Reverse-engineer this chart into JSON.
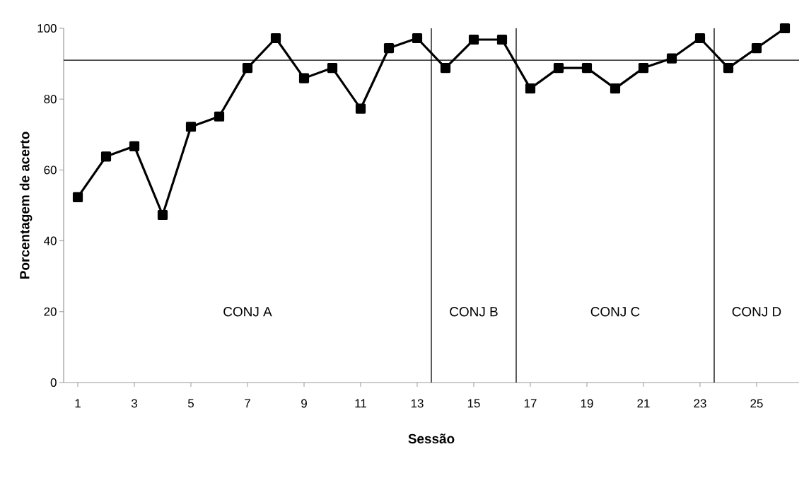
{
  "chart_data": {
    "type": "line",
    "xlabel": "Sessão",
    "ylabel": "Porcentagem de acerto",
    "x": [
      1,
      2,
      3,
      4,
      5,
      6,
      7,
      8,
      9,
      10,
      11,
      12,
      13,
      14,
      15,
      16,
      17,
      18,
      19,
      20,
      21,
      22,
      23,
      24,
      25,
      26
    ],
    "series": [
      {
        "color": "#000000",
        "values": [
          52.3,
          63.8,
          66.7,
          47.3,
          72.2,
          75.1,
          88.8,
          97.2,
          85.9,
          88.8,
          77.3,
          94.4,
          97.2,
          88.8,
          96.8,
          96.8,
          83,
          88.8,
          88.8,
          83,
          88.8,
          91.5,
          97.2,
          88.8,
          94.4,
          100
        ]
      }
    ],
    "xlim": [
      0.5,
      26.5
    ],
    "xticks": [
      1,
      3,
      5,
      7,
      9,
      11,
      13,
      15,
      17,
      19,
      21,
      23,
      25
    ],
    "ylim": [
      0,
      100
    ],
    "yticks": [
      0,
      20,
      40,
      60,
      80,
      100
    ],
    "ref_lines": [
      {
        "axis": "y",
        "value": 91,
        "color": "#000000"
      },
      {
        "axis": "x",
        "value": 13.5,
        "color": "#000000"
      },
      {
        "axis": "x",
        "value": 16.5,
        "color": "#000000"
      },
      {
        "axis": "x",
        "value": 23.5,
        "color": "#000000"
      }
    ],
    "annotations": [
      "CONJ A",
      "CONJ B",
      "CONJ C",
      "CONJ D"
    ],
    "marker": "square",
    "grid": false
  }
}
